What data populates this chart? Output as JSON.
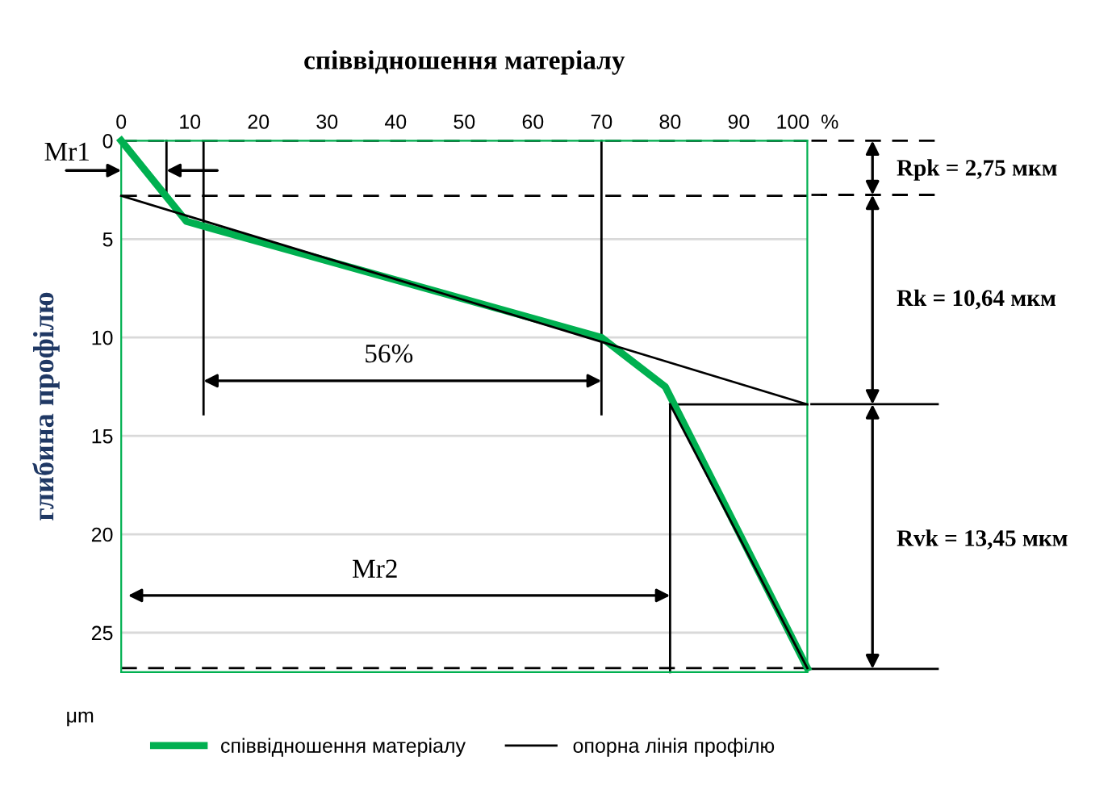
{
  "chart_data": {
    "type": "line",
    "title": "співвідношення матеріалу",
    "ylabel": "глибина профілю",
    "xlim": [
      0,
      100
    ],
    "xticks": [
      0,
      10,
      20,
      30,
      40,
      50,
      60,
      70,
      80,
      90,
      {
        "value": 100,
        "label": "100  %"
      }
    ],
    "ylim": [
      27,
      0
    ],
    "yticks": [
      0,
      5,
      10,
      15,
      20,
      25
    ],
    "grid": "y",
    "legend": "bottom",
    "series": [
      {
        "name": "співвідношення матеріалу",
        "color": "#00b050",
        "x": [
          0,
          9.5,
          70,
          79.3,
          100
        ],
        "values": [
          0,
          4.1,
          10,
          12.5,
          26.8
        ]
      },
      {
        "name": "опорна лінія профілю",
        "color": "#000000",
        "x": [
          0,
          100
        ],
        "values": [
          2.8,
          13.4
        ]
      },
      {
        "color": "#000000",
        "x": [
          80,
          100
        ],
        "values": [
          13.4,
          26.8
        ]
      },
      {
        "color": "#000000",
        "x": [
          0,
          100
        ],
        "values": [
          0,
          0
        ],
        "line_style": "dashed"
      },
      {
        "color": "#000000",
        "x": [
          0,
          100
        ],
        "values": [
          2.8,
          2.8
        ],
        "line_style": "dashed"
      },
      {
        "color": "#000000",
        "x": [
          0,
          100
        ],
        "values": [
          26.8,
          26.8
        ],
        "line_style": "dashed"
      },
      {
        "color": "#000000",
        "x": [
          80,
          100
        ],
        "values": [
          13.4,
          13.4
        ]
      },
      {
        "color": "#000000",
        "x": [
          6.6,
          6.6
        ],
        "values": [
          0,
          2.8
        ]
      },
      {
        "color": "#000000",
        "x": [
          12,
          12
        ],
        "values": [
          0,
          13.9
        ]
      },
      {
        "color": "#000000",
        "x": [
          70,
          70
        ],
        "values": [
          0,
          13.9
        ]
      },
      {
        "color": "#000000",
        "x": [
          80,
          80
        ],
        "values": [
          13.4,
          27
        ]
      }
    ],
    "marker": "none",
    "annotations": [
      "Mr1",
      "56%",
      "Mr2",
      "Rpk = 2,75 мкм",
      "Rk = 10,64 мкм",
      "Rvk = 13,45 мкм",
      "μm"
    ]
  }
}
